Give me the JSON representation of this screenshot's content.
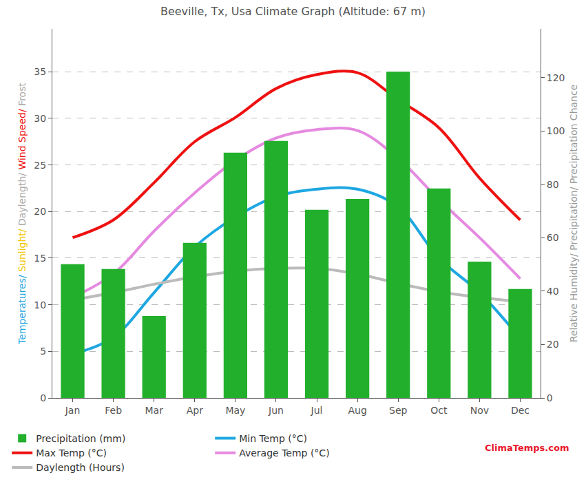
{
  "chart_data": {
    "type": "bar_line",
    "title": "Beeville, Tx, Usa Climate Graph (Altitude: 67 m)",
    "ylabel": "Temperatures/ Sunlight/ Daylength/ Wind Speed/ Frost",
    "y2label": "Relative Humidity/ Precipitation/ Precipitation Chance",
    "annotations": [
      "ClimaTemps.com"
    ],
    "categories": [
      "Jan",
      "Feb",
      "Mar",
      "Apr",
      "May",
      "Jun",
      "Jul",
      "Aug",
      "Sep",
      "Oct",
      "Nov",
      "Dec"
    ],
    "ylim": [
      0,
      39.6
    ],
    "yticks": [
      0,
      5,
      10,
      15,
      20,
      25,
      30,
      35
    ],
    "y2lim": [
      0,
      138.3
    ],
    "y2ticks": [
      0,
      20,
      40,
      60,
      80,
      100,
      120
    ],
    "grid": true,
    "legend": "bottom",
    "series": [
      {
        "name": "Precipitation (mm)",
        "type": "bar",
        "axis": "y2",
        "color": "#22b02c",
        "values": [
          50.1,
          48.3,
          30.7,
          58.1,
          91.9,
          96.3,
          70.5,
          74.6,
          122.3,
          78.5,
          51.1,
          40.8
        ]
      },
      {
        "name": "Min Temp (°C)",
        "type": "line",
        "line_style": "smooth",
        "color": "#1ea7e1",
        "values": [
          4.7,
          6.5,
          11.3,
          16.2,
          19.4,
          21.6,
          22.4,
          22.4,
          20.5,
          15.0,
          11.3,
          6.4
        ]
      },
      {
        "name": "Max Temp (°C)",
        "type": "line",
        "line_style": "smooth",
        "color": "#ee1111",
        "values": [
          17.2,
          19.1,
          23.1,
          27.5,
          30.1,
          33.2,
          34.7,
          34.9,
          32.0,
          29.0,
          23.6,
          19.1
        ]
      },
      {
        "name": "Average Temp (°C)",
        "type": "line",
        "line_style": "smooth",
        "color": "#e58ae0",
        "values": [
          10.8,
          13.3,
          17.9,
          22.0,
          25.5,
          27.9,
          28.8,
          28.7,
          25.7,
          21.3,
          17.2,
          12.8
        ]
      },
      {
        "name": "Daylength (Hours)",
        "type": "line",
        "line_style": "smooth",
        "color": "#bbbbbb",
        "values": [
          10.5,
          11.3,
          12.2,
          13.0,
          13.6,
          13.9,
          13.9,
          13.3,
          12.3,
          11.4,
          10.8,
          10.3
        ]
      }
    ]
  }
}
